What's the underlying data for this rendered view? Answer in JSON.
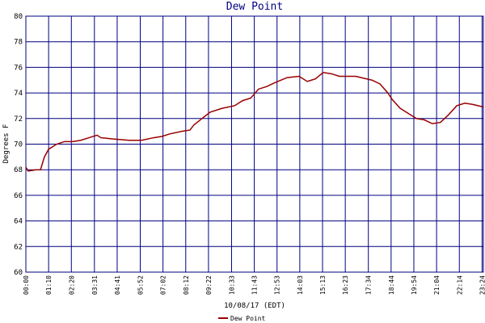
{
  "chart_data": {
    "type": "line",
    "title": "Dew Point",
    "xlabel": "10/08/17 (EDT)",
    "ylabel": "Degrees F",
    "xlim": [
      0,
      1408
    ],
    "ylim": [
      60,
      80
    ],
    "yticks": [
      60,
      62,
      64,
      66,
      68,
      70,
      72,
      74,
      76,
      78,
      80
    ],
    "xticks": [
      {
        "value": 0,
        "label": "00:00"
      },
      {
        "value": 70,
        "label": "01:10"
      },
      {
        "value": 140,
        "label": "02:20"
      },
      {
        "value": 211,
        "label": "03:31"
      },
      {
        "value": 281,
        "label": "04:41"
      },
      {
        "value": 352,
        "label": "05:52"
      },
      {
        "value": 422,
        "label": "07:02"
      },
      {
        "value": 492,
        "label": "08:12"
      },
      {
        "value": 562,
        "label": "09:22"
      },
      {
        "value": 633,
        "label": "10:33"
      },
      {
        "value": 703,
        "label": "11:43"
      },
      {
        "value": 773,
        "label": "12:53"
      },
      {
        "value": 843,
        "label": "14:03"
      },
      {
        "value": 913,
        "label": "15:13"
      },
      {
        "value": 983,
        "label": "16:23"
      },
      {
        "value": 1054,
        "label": "17:34"
      },
      {
        "value": 1124,
        "label": "18:44"
      },
      {
        "value": 1194,
        "label": "19:54"
      },
      {
        "value": 1264,
        "label": "21:04"
      },
      {
        "value": 1334,
        "label": "22:14"
      },
      {
        "value": 1404,
        "label": "23:24"
      }
    ],
    "grid": true,
    "x": [
      0,
      7,
      32,
      45,
      57,
      70,
      95,
      119,
      144,
      169,
      194,
      219,
      231,
      269,
      318,
      356,
      393,
      418,
      443,
      480,
      505,
      517,
      542,
      567,
      604,
      642,
      667,
      692,
      716,
      741,
      766,
      804,
      841,
      866,
      891,
      915,
      940,
      965,
      1015,
      1065,
      1090,
      1114,
      1127,
      1152,
      1177,
      1202,
      1226,
      1251,
      1276,
      1301,
      1326,
      1351,
      1376,
      1408
    ],
    "series": [
      {
        "name": "Dew Point",
        "color": "#990000",
        "values": [
          68.2,
          67.9,
          68.0,
          68.0,
          69.0,
          69.6,
          70.0,
          70.2,
          70.2,
          70.3,
          70.5,
          70.7,
          70.5,
          70.4,
          70.3,
          70.3,
          70.5,
          70.6,
          70.8,
          71.0,
          71.1,
          71.5,
          72.0,
          72.5,
          72.8,
          73.0,
          73.4,
          73.6,
          74.3,
          74.5,
          74.8,
          75.2,
          75.3,
          74.9,
          75.1,
          75.6,
          75.5,
          75.3,
          75.3,
          75.0,
          74.7,
          74.0,
          73.5,
          72.8,
          72.4,
          72.0,
          71.9,
          71.6,
          71.7,
          72.3,
          73.0,
          73.2,
          73.1,
          72.9
        ]
      }
    ]
  }
}
